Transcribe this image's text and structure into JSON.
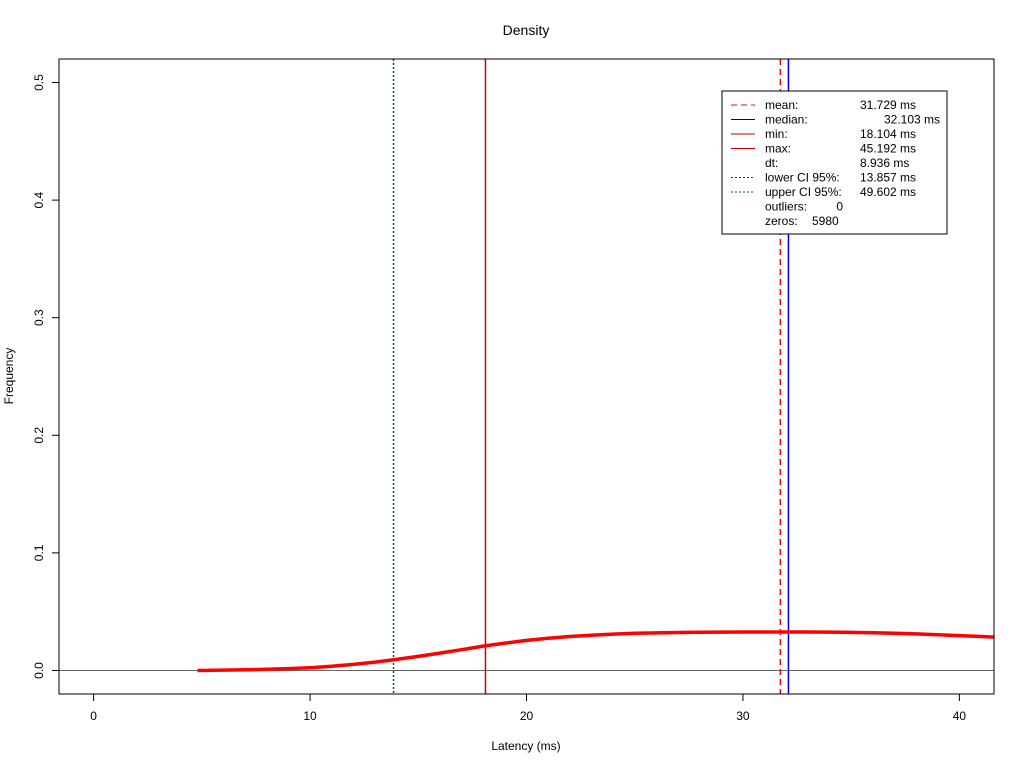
{
  "chart_data": {
    "type": "line",
    "title": "Density",
    "xlabel": "Latency (ms)",
    "ylabel": "Frequency",
    "xlim": [
      -1.6,
      41.6
    ],
    "ylim": [
      -0.02,
      0.52
    ],
    "x_ticks": [
      "0",
      "10",
      "20",
      "30",
      "40"
    ],
    "y_ticks": [
      "0.0",
      "0.1",
      "0.2",
      "0.3",
      "0.4",
      "0.5"
    ],
    "grid": false,
    "baseline_y": 0,
    "density": {
      "color": "#ff0000",
      "x": [
        4.8,
        6,
        7,
        8,
        9,
        10,
        11,
        12,
        13,
        14,
        15,
        16,
        17,
        18,
        19,
        20,
        21,
        22,
        23,
        24,
        25,
        26,
        27,
        28,
        29,
        30,
        31,
        32,
        33,
        34,
        35,
        36,
        37,
        38,
        39,
        40,
        41,
        41.6
      ],
      "y": [
        0.0,
        0.0003,
        0.0006,
        0.001,
        0.0016,
        0.0024,
        0.0036,
        0.0052,
        0.0071,
        0.0094,
        0.012,
        0.0148,
        0.0177,
        0.0207,
        0.0233,
        0.0256,
        0.0274,
        0.0289,
        0.03,
        0.0309,
        0.0316,
        0.032,
        0.0323,
        0.0325,
        0.0326,
        0.0327,
        0.0327,
        0.0327,
        0.0327,
        0.0326,
        0.0324,
        0.0321,
        0.0317,
        0.0311,
        0.0304,
        0.0297,
        0.0289,
        0.0284
      ]
    },
    "vlines": [
      {
        "name": "lower CI 95%",
        "x": 13.857,
        "color": "#006400",
        "style": "dotted"
      },
      {
        "name": "min",
        "x": 18.104,
        "color": "#cd0000",
        "style": "solid"
      },
      {
        "name": "mean",
        "x": 31.729,
        "color": "#ff0000",
        "style": "dashed"
      },
      {
        "name": "median",
        "x": 32.103,
        "color": "#0000cd",
        "style": "solid"
      }
    ],
    "legend": {
      "placement": "top-right",
      "entries": [
        {
          "label": "mean:",
          "value": "31.729 ms",
          "color": "#ff0000",
          "line": "dashed"
        },
        {
          "label": "median:",
          "value": "32.103 ms",
          "color": "#00008b",
          "line": "solid"
        },
        {
          "label": "min:",
          "value": "18.104 ms",
          "color": "#cd0000",
          "line": "solid"
        },
        {
          "label": "max:",
          "value": "45.192 ms",
          "color": "#cd0000",
          "line": "solid"
        },
        {
          "label": "dt:",
          "value": "8.936 ms",
          "color": "",
          "line": "none"
        },
        {
          "label": "lower CI 95%:",
          "value": "13.857 ms",
          "color": "#006400",
          "line": "dotted"
        },
        {
          "label": "upper CI 95%:",
          "value": "49.602 ms",
          "color": "#006400",
          "line": "dotted"
        },
        {
          "label": "outliers:",
          "value": "0",
          "color": "",
          "line": "none"
        },
        {
          "label": "zeros:",
          "value": "5980",
          "color": "",
          "line": "none"
        }
      ]
    }
  }
}
